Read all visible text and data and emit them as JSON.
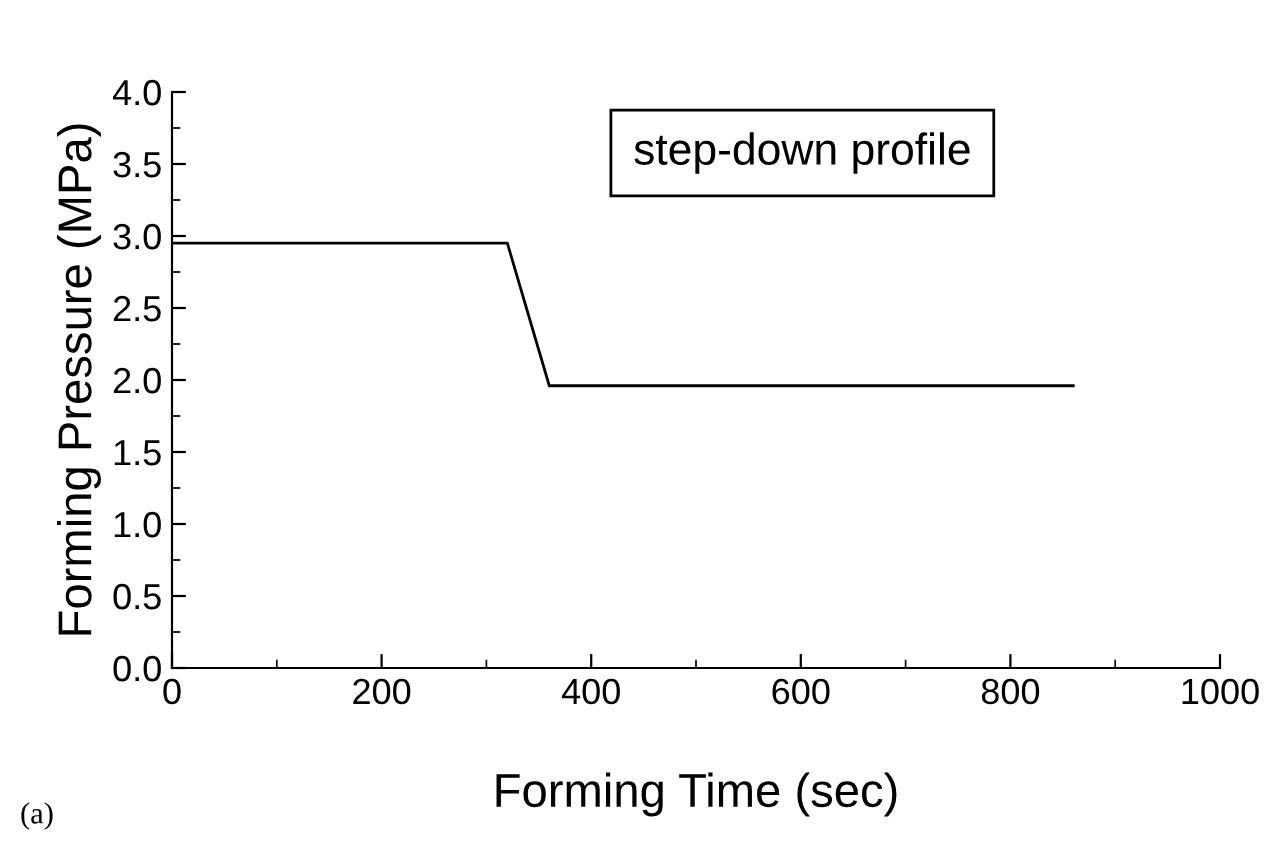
{
  "chart_data": {
    "type": "line",
    "xlabel": "Forming Time (sec)",
    "ylabel": "Forming Pressure (MPa)",
    "annotations": [
      "step-down profile",
      "(a)"
    ],
    "series": [
      {
        "color": "#000000",
        "x": [
          0,
          320,
          360,
          860
        ],
        "values": [
          2.95,
          2.95,
          1.96,
          1.96
        ]
      }
    ],
    "xlim": [
      0,
      1000
    ],
    "xticks": [
      0,
      200,
      400,
      600,
      800,
      1000
    ],
    "ylim": [
      0.0,
      4.0
    ],
    "yticks": [
      {
        "value": 0,
        "label": "0.0"
      },
      {
        "value": 0.5,
        "label": "0.5"
      },
      {
        "value": 1,
        "label": "1.0"
      },
      {
        "value": 1.5,
        "label": "1.5"
      },
      {
        "value": 2,
        "label": "2.0"
      },
      {
        "value": 2.5,
        "label": "2.5"
      },
      {
        "value": 3,
        "label": "3.0"
      },
      {
        "value": 3.5,
        "label": "3.5"
      },
      {
        "value": 4,
        "label": "4.0"
      }
    ],
    "grid": false,
    "legend": false,
    "marker": "none",
    "line_style": "solid"
  }
}
